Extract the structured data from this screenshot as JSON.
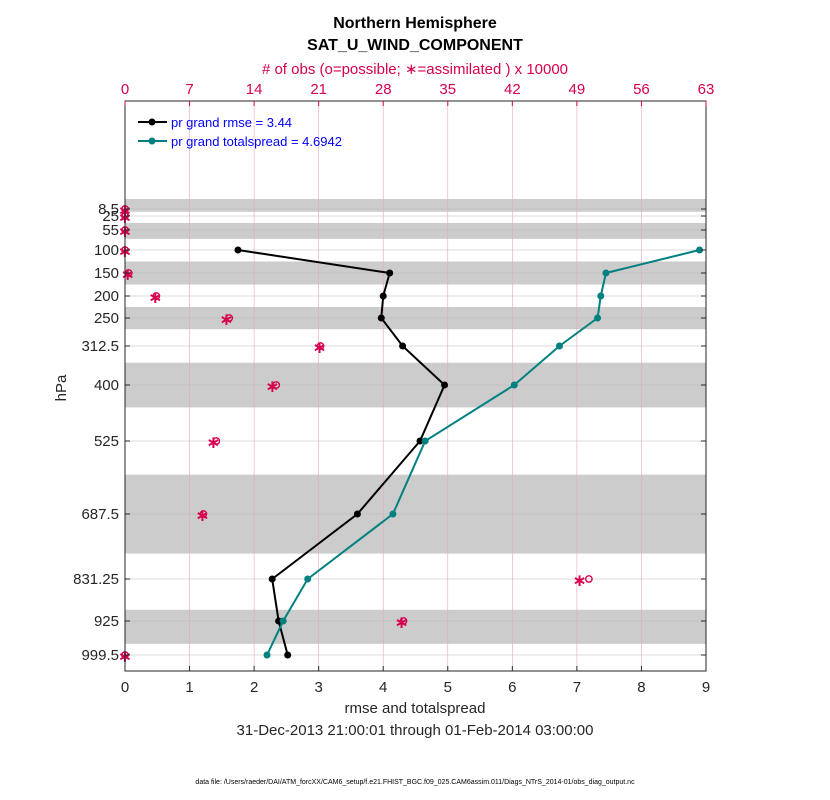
{
  "chart_data": {
    "type": "line",
    "title": "Northern Hemisphere",
    "subtitle": "SAT_U_WIND_COMPONENT",
    "top_axis_label": "# of obs (o=possible; ∗=assimilated ) x 10000",
    "top_ticks": [
      "0",
      "7",
      "14",
      "21",
      "28",
      "35",
      "42",
      "49",
      "56",
      "63"
    ],
    "top_max": 63,
    "xlabel": "rmse and totalspread",
    "x_ticks": [
      "0",
      "1",
      "2",
      "3",
      "4",
      "5",
      "6",
      "7",
      "8",
      "9"
    ],
    "xlim": [
      0,
      9
    ],
    "ylabel": "hPa",
    "y_ticks": [
      "8.5",
      "25",
      "55",
      "100",
      "150",
      "200",
      "250",
      "312.5",
      "400",
      "525",
      "687.5",
      "831.25",
      "925",
      "999.5"
    ],
    "levels": [
      8.5,
      25,
      55,
      100,
      150,
      200,
      250,
      312.5,
      400,
      525,
      687.5,
      831.25,
      925,
      999.5
    ],
    "bands": [
      [
        0,
        15
      ],
      [
        40,
        75
      ],
      [
        125,
        175
      ],
      [
        225,
        275
      ],
      [
        350,
        450
      ],
      [
        600,
        775
      ],
      [
        900,
        975
      ]
    ],
    "date_range": "31-Dec-2013 21:00:01 through 01-Feb-2014 03:00:00",
    "series": [
      {
        "name": "pr grand rmse = 3.44",
        "color": "#000000",
        "levels": [
          100,
          150,
          200,
          250,
          312.5,
          400,
          525,
          687.5,
          831.25,
          925,
          999.5
        ],
        "values": [
          1.75,
          4.1,
          4.0,
          3.97,
          4.3,
          4.95,
          4.57,
          3.6,
          2.28,
          2.38,
          2.52
        ]
      },
      {
        "name": "pr grand totalspread = 4.6942",
        "color": "#00807f",
        "levels": [
          100,
          150,
          200,
          250,
          312.5,
          400,
          525,
          687.5,
          831.25,
          925,
          999.5
        ],
        "values": [
          8.9,
          7.45,
          7.37,
          7.32,
          6.73,
          6.03,
          4.65,
          4.15,
          2.83,
          2.45,
          2.2
        ]
      }
    ],
    "obs_possible": {
      "levels": [
        8.5,
        25,
        55,
        100,
        150,
        200,
        250,
        312.5,
        400,
        525,
        687.5,
        831.25,
        925,
        999.5
      ],
      "values": [
        0,
        0,
        0,
        0,
        0.4,
        3.4,
        11.3,
        21.2,
        16.4,
        9.9,
        8.5,
        50.3,
        30.2,
        0
      ]
    },
    "obs_assimilated": {
      "levels": [
        8.5,
        25,
        55,
        100,
        150,
        200,
        250,
        312.5,
        400,
        525,
        687.5,
        831.25,
        925,
        999.5
      ],
      "values": [
        0,
        0,
        0,
        0,
        0.3,
        3.3,
        11.0,
        21.1,
        16.0,
        9.6,
        8.4,
        49.3,
        30.0,
        0
      ]
    }
  },
  "footnote": "data file: /Users/raeder/DAI/ATM_forcXX/CAM6_setup/f.e21.FHIST_BGC.f09_025.CAM6assim.011/Diags_NTrS_2014-01/obs_diag_output.nc",
  "colors": {
    "rmse": "#000000",
    "spread": "#00807f",
    "obs": "#d6004f",
    "band": "#cccccc"
  }
}
